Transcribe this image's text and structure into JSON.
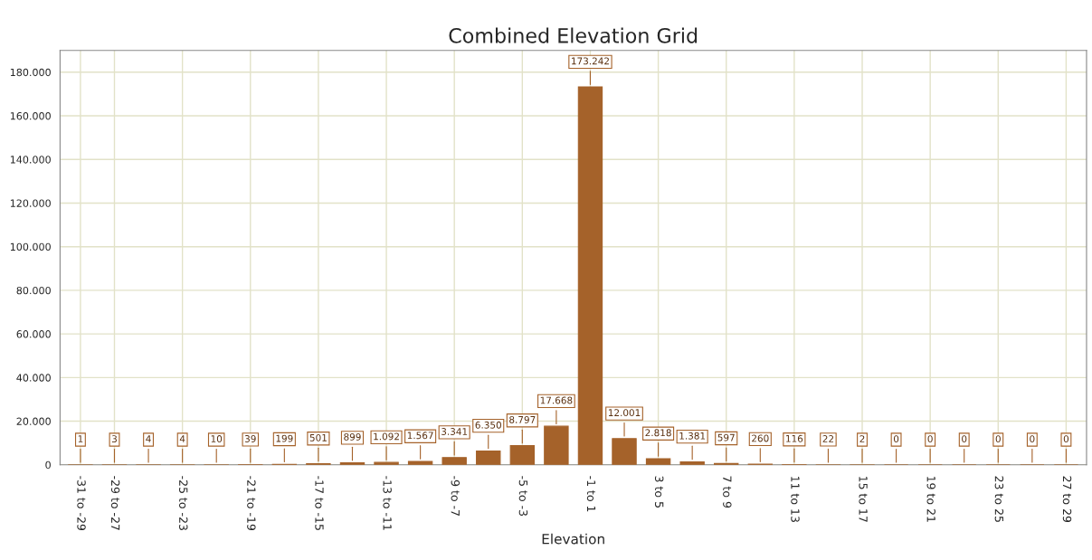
{
  "chart_data": {
    "type": "bar",
    "title": "Combined Elevation Grid",
    "xlabel": "Elevation",
    "categories": [
      "-31 to -29",
      "-29 to -27",
      null,
      "-25 to -23",
      null,
      "-21 to -19",
      null,
      "-17 to -15",
      null,
      "-13 to -11",
      null,
      "-9 to -7",
      null,
      "-5 to -3",
      null,
      "-1 to 1",
      null,
      "3 to 5",
      null,
      "7 to 9",
      null,
      "11 to 13",
      null,
      "15 to 17",
      null,
      "19 to 21",
      null,
      "23 to 25",
      null,
      "27 to 29"
    ],
    "values": [
      1,
      3,
      4,
      4,
      10,
      39,
      199,
      501,
      899,
      1092,
      1567,
      3341,
      6350,
      8797,
      17668,
      173242,
      12001,
      2818,
      1381,
      597,
      260,
      116,
      22,
      2,
      0,
      0,
      0,
      0,
      0,
      0
    ],
    "value_labels": [
      "1",
      "3",
      "4",
      "4",
      "10",
      "39",
      "199",
      "501",
      "899",
      "1.092",
      "1.567",
      "3.341",
      "6.350",
      "8.797",
      "17.668",
      "173.242",
      "12.001",
      "2.818",
      "1.381",
      "597",
      "260",
      "116",
      "22",
      "2",
      "0",
      "0",
      "0",
      "0",
      "0",
      "0"
    ],
    "color": "#a5622a",
    "ylim": [
      0,
      190000
    ],
    "yticks": [
      {
        "value": 0,
        "label": "0"
      },
      {
        "value": 20000,
        "label": "20.000"
      },
      {
        "value": 40000,
        "label": "40.000"
      },
      {
        "value": 60000,
        "label": "60.000"
      },
      {
        "value": 80000,
        "label": "80.000"
      },
      {
        "value": 100000,
        "label": "100.000"
      },
      {
        "value": 120000,
        "label": "120.000"
      },
      {
        "value": 140000,
        "label": "140.000"
      },
      {
        "value": 160000,
        "label": "160.000"
      },
      {
        "value": 180000,
        "label": "180.000"
      }
    ],
    "grid": true
  }
}
